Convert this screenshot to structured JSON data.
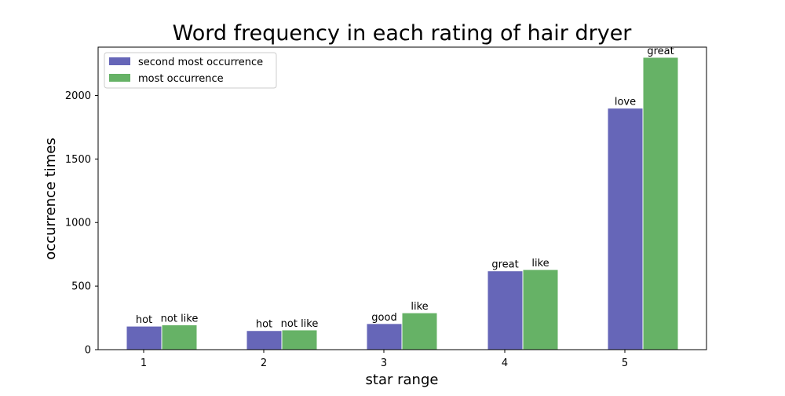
{
  "chart_data": {
    "type": "bar",
    "title": "Word frequency in each rating of hair dryer",
    "xlabel": "star range",
    "ylabel": "occurrence times",
    "categories": [
      "1",
      "2",
      "3",
      "4",
      "5"
    ],
    "ylim": [
      0,
      2380
    ],
    "yticks": [
      0,
      500,
      1000,
      1500,
      2000
    ],
    "grid": false,
    "legend_position": "top-left",
    "series": [
      {
        "name": "second most occurrence",
        "color": "#6666b8",
        "values": [
          185,
          150,
          205,
          620,
          1900
        ],
        "labels": [
          "hot",
          "hot",
          "good",
          "great",
          "love"
        ]
      },
      {
        "name": "most occurrence",
        "color": "#66b266",
        "values": [
          195,
          155,
          290,
          630,
          2300
        ],
        "labels": [
          "not like",
          "not like",
          "like",
          "like",
          "great"
        ]
      }
    ]
  }
}
